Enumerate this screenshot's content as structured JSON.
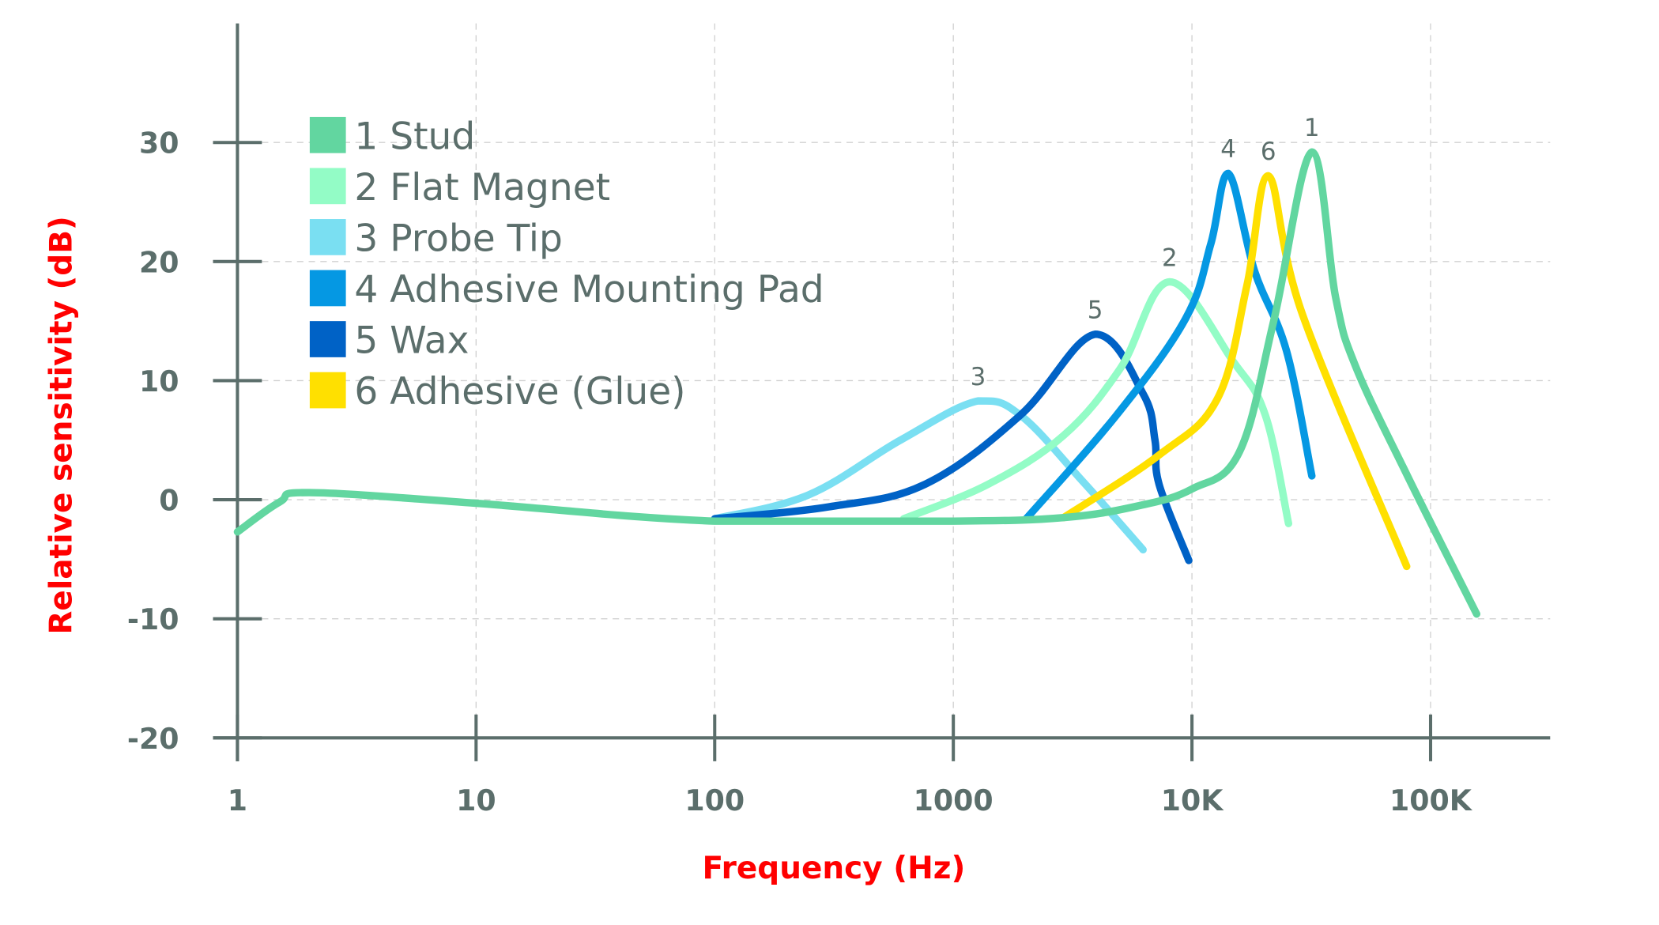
{
  "chart_data": {
    "type": "line",
    "title": "",
    "xlabel": "Frequency (Hz)",
    "ylabel": "Relative sensitivity (dB)",
    "x_scale": "log",
    "xlim": [
      1,
      300000
    ],
    "ylim": [
      -20,
      35
    ],
    "x_ticks": [
      1,
      10,
      100,
      1000,
      10000,
      100000
    ],
    "x_tick_labels": [
      "1",
      "10",
      "100",
      "1000",
      "10K",
      "100K"
    ],
    "y_ticks": [
      30,
      20,
      10,
      0,
      -10,
      -20
    ],
    "y_tick_labels": [
      "30",
      "20",
      "10",
      "0",
      "-10",
      "-20"
    ],
    "grid": true,
    "legend_position": "top-left",
    "series": [
      {
        "name": "1  Stud",
        "label": "1",
        "color": "#62d6a0",
        "x": [
          1,
          1.5,
          2,
          10,
          100,
          1000,
          2900,
          6000,
          10000,
          15800,
          22000,
          31800,
          40000,
          48500,
          80000,
          156000
        ],
        "y": [
          -2.7,
          -0.2,
          0.6,
          -0.3,
          -1.8,
          -1.8,
          -1.5,
          -0.5,
          0.9,
          4,
          15,
          29.2,
          17,
          11.2,
          2,
          -9.6
        ]
      },
      {
        "name": "2 Flat Magnet",
        "label": "2",
        "color": "#93fcc6",
        "x": [
          620,
          1400,
          2900,
          5000,
          8060,
          14900,
          20300,
          25400
        ],
        "y": [
          -1.6,
          1.3,
          5.4,
          11,
          18.3,
          11.6,
          7.1,
          -2
        ]
      },
      {
        "name": "3 Probe Tip",
        "label": "3",
        "color": "#7adff2",
        "x": [
          100,
          247,
          600,
          1270,
          1910,
          3500,
          6240
        ],
        "y": [
          -1.6,
          0.4,
          5,
          8.3,
          7.1,
          1.5,
          -4.2
        ]
      },
      {
        "name": "4 Adhesive Mounting Pad",
        "label": "4",
        "color": "#0598e3",
        "x": [
          2020,
          4830,
          9400,
          12000,
          14200,
          18300,
          24900,
          31800
        ],
        "y": [
          -1.6,
          7.1,
          15.2,
          21.5,
          27.4,
          19.2,
          12.5,
          2
        ]
      },
      {
        "name": "5 Wax",
        "label": "5",
        "color": "#0062c6",
        "x": [
          100,
          300,
          762,
          1910,
          3930,
          6240,
          7000,
          7280,
          9700
        ],
        "y": [
          -1.6,
          -0.6,
          1.3,
          7.1,
          13.9,
          8.9,
          5,
          1.3,
          -5.1
        ]
      },
      {
        "name": "6 Adhesive (Glue)",
        "label": "6",
        "color": "#ffe000",
        "x": [
          2900,
          7280,
          12800,
          17000,
          20900,
          29000,
          79400
        ],
        "y": [
          -1.5,
          3.75,
          8.5,
          18,
          27.2,
          15.6,
          -5.6
        ]
      }
    ]
  }
}
